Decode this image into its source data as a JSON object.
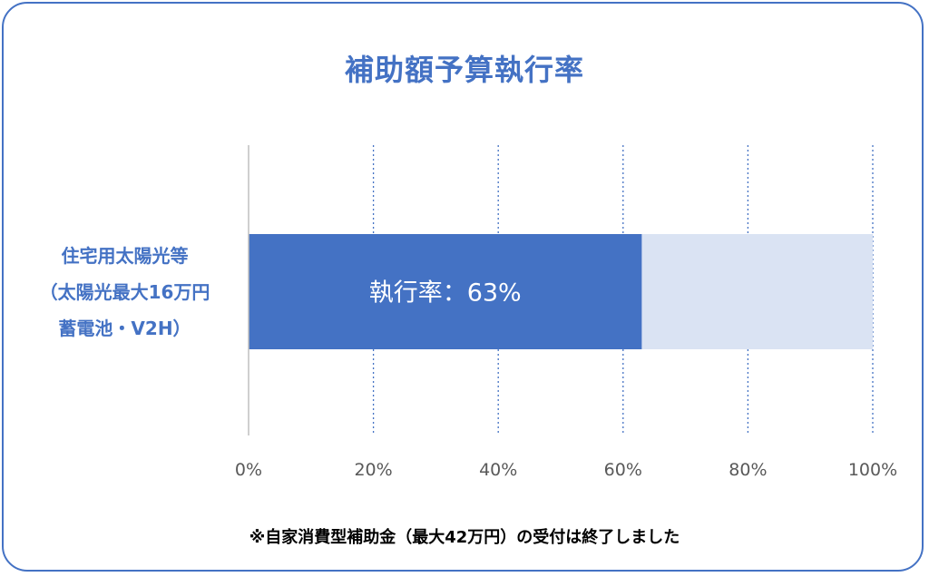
{
  "chart_data": {
    "type": "bar",
    "orientation": "horizontal",
    "stacked": true,
    "title": "補助額予算執行率",
    "categories": [
      [
        "住宅用太陽光等",
        "（太陽光最大16万円",
        "蓄電池・V2H）"
      ]
    ],
    "series": [
      {
        "values": [
          63
        ],
        "color": "#4472c4"
      },
      {
        "values": [
          37
        ],
        "color": "#dae3f3"
      }
    ],
    "data_label": "執行率：63%",
    "xlim": [
      0,
      100
    ],
    "x_ticks": [
      0,
      20,
      40,
      60,
      80,
      100
    ],
    "x_tick_labels": [
      "0%",
      "20%",
      "40%",
      "60%",
      "80%",
      "100%"
    ],
    "grid": "vertical-dotted",
    "legend": "none"
  },
  "footnote": "※自家消費型補助金（最大42万円）の受付は終了しました",
  "colors": {
    "accent": "#4472c4",
    "remainder": "#dae3f3",
    "grid": "#4472c4",
    "axis": "#bfbfbf",
    "tick_text": "#595959"
  }
}
